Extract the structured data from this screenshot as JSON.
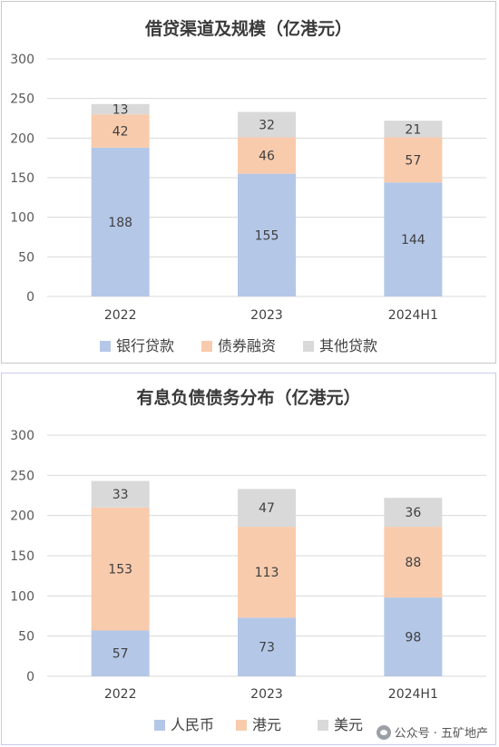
{
  "chart_data": [
    {
      "type": "bar",
      "stacked": true,
      "title": "借贷渠道及规模（亿港元）",
      "categories": [
        "2022",
        "2023",
        "2024H1"
      ],
      "ylim": [
        0,
        300
      ],
      "yticks": [
        0,
        50,
        100,
        150,
        200,
        250,
        300
      ],
      "grid": true,
      "legend_position": "bottom",
      "series": [
        {
          "name": "银行贷款",
          "values": [
            188,
            155,
            144
          ],
          "color": "#b4c7e7"
        },
        {
          "name": "债券融资",
          "values": [
            42,
            46,
            57
          ],
          "color": "#f8cbad"
        },
        {
          "name": "其他贷款",
          "values": [
            13,
            32,
            21
          ],
          "color": "#d9d9d9"
        }
      ]
    },
    {
      "type": "bar",
      "stacked": true,
      "title": "有息负债债务分布（亿港元）",
      "categories": [
        "2022",
        "2023",
        "2024H1"
      ],
      "ylim": [
        0,
        300
      ],
      "yticks": [
        0,
        50,
        100,
        150,
        200,
        250,
        300
      ],
      "grid": true,
      "legend_position": "bottom",
      "series": [
        {
          "name": "人民币",
          "values": [
            57,
            73,
            98
          ],
          "color": "#b4c7e7"
        },
        {
          "name": "港元",
          "values": [
            153,
            113,
            88
          ],
          "color": "#f8cbad"
        },
        {
          "name": "美元",
          "values": [
            33,
            47,
            36
          ],
          "color": "#d9d9d9"
        }
      ]
    }
  ],
  "watermark": {
    "text": "公众号 · 五矿地产",
    "icon": "wechat-icon"
  }
}
